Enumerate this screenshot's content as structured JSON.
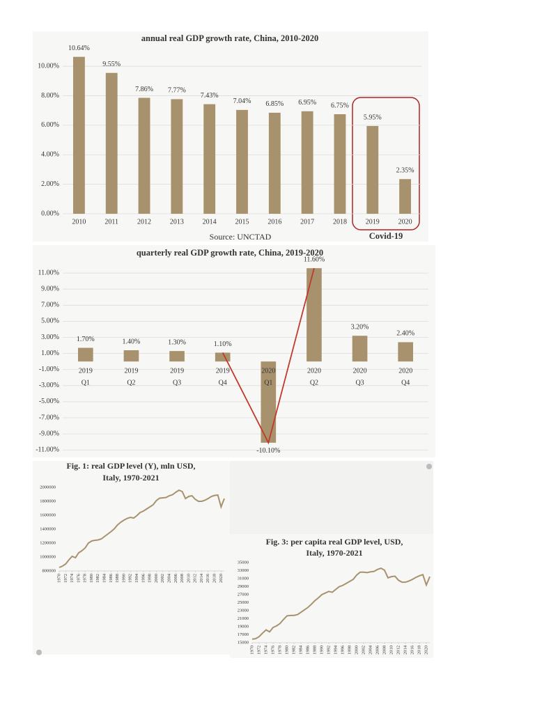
{
  "chart_data": [
    {
      "type": "bar",
      "title": "annual real GDP growth rate, China, 2010-2020",
      "categories": [
        "2010",
        "2011",
        "2012",
        "2013",
        "2014",
        "2015",
        "2016",
        "2017",
        "2018",
        "2019",
        "2020"
      ],
      "values": [
        10.64,
        9.55,
        7.86,
        7.77,
        7.43,
        7.04,
        6.85,
        6.95,
        6.75,
        5.95,
        2.35
      ],
      "value_labels": [
        "10.64%",
        "9.55%",
        "7.86%",
        "7.77%",
        "7.43%",
        "7.04%",
        "6.85%",
        "6.95%",
        "6.75%",
        "5.95%",
        "2.35%"
      ],
      "color": "#a8926e",
      "ylim": [
        0,
        11
      ],
      "yticks": [
        {
          "value": 0,
          "label": "0.00%"
        },
        {
          "value": 2,
          "label": "2.00%"
        },
        {
          "value": 4,
          "label": "4.00%"
        },
        {
          "value": 6,
          "label": "6.00%"
        },
        {
          "value": 8,
          "label": "8.00%"
        },
        {
          "value": 10,
          "label": "10.00%"
        }
      ],
      "grid": true,
      "source": "Source: UNCTAD",
      "annotation": "Covid-19",
      "annotation_color": "#b22222"
    },
    {
      "type": "bar",
      "title": "quarterly real GDP growth rate, China, 2019-2020",
      "categories": [
        [
          "2019",
          "Q1"
        ],
        [
          "2019",
          "Q2"
        ],
        [
          "2019",
          "Q3"
        ],
        [
          "2019",
          "Q4"
        ],
        [
          "2020",
          "Q1"
        ],
        [
          "2020",
          "Q2"
        ],
        [
          "2020",
          "Q3"
        ],
        [
          "2020",
          "Q4"
        ]
      ],
      "values": [
        1.7,
        1.4,
        1.3,
        1.1,
        -10.1,
        11.6,
        3.2,
        2.4
      ],
      "value_labels": [
        "1.70%",
        "1.40%",
        "1.30%",
        "1.10%",
        "-10.10%",
        "11.60%",
        "3.20%",
        "2.40%"
      ],
      "color": "#a8926e",
      "trend_color": "#c0392b",
      "ylim": [
        -11.5,
        13
      ],
      "yticks": [
        {
          "value": -11,
          "label": "-11.00%"
        },
        {
          "value": -9,
          "label": "-9.00%"
        },
        {
          "value": -7,
          "label": "-7.00%"
        },
        {
          "value": -5,
          "label": "-5.00%"
        },
        {
          "value": -3,
          "label": "-3.00%"
        },
        {
          "value": -1,
          "label": "-1.00%"
        },
        {
          "value": 1,
          "label": "1.00%"
        },
        {
          "value": 3,
          "label": "3.00%"
        },
        {
          "value": 5,
          "label": "5.00%"
        },
        {
          "value": 7,
          "label": "7.00%"
        },
        {
          "value": 9,
          "label": "9.00%"
        },
        {
          "value": 11,
          "label": "11.00%"
        }
      ],
      "grid": true
    },
    {
      "type": "line",
      "title": [
        "Fig. 1: real GDP level (Y), mln USD,",
        "Italy, 1970-2021"
      ],
      "x": [
        1970,
        1971,
        1972,
        1973,
        1974,
        1975,
        1976,
        1977,
        1978,
        1979,
        1980,
        1981,
        1982,
        1983,
        1984,
        1985,
        1986,
        1987,
        1988,
        1989,
        1990,
        1991,
        1992,
        1993,
        1994,
        1995,
        1996,
        1997,
        1998,
        1999,
        2000,
        2001,
        2002,
        2003,
        2004,
        2005,
        2006,
        2007,
        2008,
        2009,
        2010,
        2011,
        2012,
        2013,
        2014,
        2015,
        2016,
        2017,
        2018,
        2019,
        2020,
        2021
      ],
      "values": [
        850000,
        870000,
        900000,
        960000,
        1010000,
        990000,
        1060000,
        1090000,
        1130000,
        1200000,
        1230000,
        1240000,
        1245000,
        1260000,
        1295000,
        1330000,
        1365000,
        1405000,
        1460000,
        1500000,
        1530000,
        1555000,
        1570000,
        1560000,
        1595000,
        1640000,
        1660000,
        1690000,
        1720000,
        1750000,
        1810000,
        1845000,
        1850000,
        1855000,
        1880000,
        1895000,
        1930000,
        1960000,
        1940000,
        1840000,
        1870000,
        1880000,
        1830000,
        1800000,
        1800000,
        1815000,
        1840000,
        1870000,
        1885000,
        1890000,
        1720000,
        1840000
      ],
      "color": "#a8926e",
      "xlim": [
        1970,
        2021
      ],
      "xticks": [
        1970,
        1972,
        1974,
        1976,
        1978,
        1980,
        1982,
        1984,
        1986,
        1988,
        1990,
        1992,
        1994,
        1996,
        1998,
        2000,
        2002,
        2004,
        2006,
        2008,
        2010,
        2012,
        2014,
        2016,
        2018,
        2020
      ],
      "ylim": [
        800000,
        2000000
      ],
      "yticks": [
        800000,
        1000000,
        1200000,
        1400000,
        1600000,
        1800000,
        2000000
      ]
    },
    {
      "type": "line",
      "title": [
        "Fig. 3: per capita real GDP level, USD,",
        "Italy, 1970-2021"
      ],
      "x": [
        1970,
        1971,
        1972,
        1973,
        1974,
        1975,
        1976,
        1977,
        1978,
        1979,
        1980,
        1981,
        1982,
        1983,
        1984,
        1985,
        1986,
        1987,
        1988,
        1989,
        1990,
        1991,
        1992,
        1993,
        1994,
        1995,
        1996,
        1997,
        1998,
        1999,
        2000,
        2001,
        2002,
        2003,
        2004,
        2005,
        2006,
        2007,
        2008,
        2009,
        2010,
        2011,
        2012,
        2013,
        2014,
        2015,
        2016,
        2017,
        2018,
        2019,
        2020,
        2021
      ],
      "values": [
        15900,
        16000,
        16500,
        17400,
        18200,
        17700,
        18800,
        19200,
        19800,
        20800,
        21700,
        21800,
        21800,
        22000,
        22600,
        23200,
        23800,
        24600,
        25500,
        26200,
        27000,
        27400,
        27800,
        27600,
        28300,
        29000,
        29300,
        29800,
        30300,
        30800,
        31900,
        32600,
        32600,
        32500,
        32700,
        32800,
        33300,
        33600,
        33100,
        31200,
        31500,
        31600,
        30600,
        30100,
        30100,
        30400,
        30800,
        31300,
        31700,
        32000,
        29400,
        31500
      ],
      "color": "#a8926e",
      "xlim": [
        1970,
        2021
      ],
      "xticks": [
        1970,
        1972,
        1974,
        1976,
        1978,
        1980,
        1982,
        1984,
        1986,
        1988,
        1990,
        1992,
        1994,
        1996,
        1998,
        2000,
        2002,
        2004,
        2006,
        2008,
        2010,
        2012,
        2014,
        2016,
        2018,
        2020
      ],
      "ylim": [
        15000,
        35000
      ],
      "yticks": [
        15000,
        17000,
        19000,
        21000,
        23000,
        25000,
        27000,
        29000,
        31000,
        33000,
        35000
      ]
    }
  ]
}
